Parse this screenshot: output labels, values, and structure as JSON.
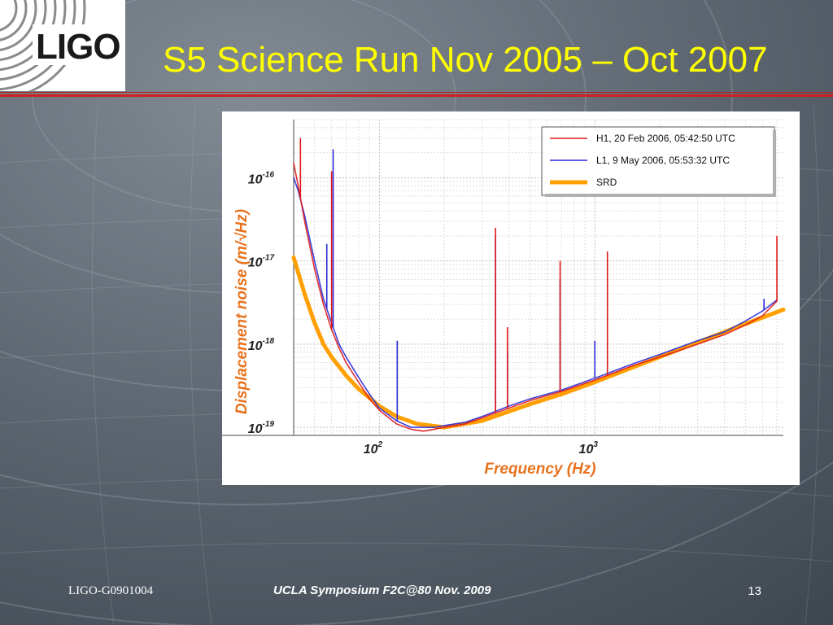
{
  "slide": {
    "logo_text": "LIGO",
    "title": "S5 Science Run Nov 2005 – Oct 2007",
    "footer_left": "LIGO-G0901004",
    "footer_center": "UCLA Symposium F2C@80 Nov. 2009",
    "page_number": "13"
  },
  "colors": {
    "title": "#ffff00",
    "accent_rule": "#d01f1f",
    "h1_trace": "#e01818",
    "l1_trace": "#2a2ad8",
    "srd": "#ffa000",
    "axis_label": "#e8731f"
  },
  "chart_data": {
    "type": "line",
    "x_scale": "log",
    "y_scale": "log",
    "xlabel": "Frequency (Hz)",
    "ylabel": "Displacement noise (m/√Hz)",
    "xlim": [
      40,
      7500
    ],
    "ylim": [
      8e-20,
      5e-16
    ],
    "x_ticks": [
      {
        "value": 100,
        "label": "10",
        "exp": "2"
      },
      {
        "value": 1000,
        "label": "10",
        "exp": "3"
      }
    ],
    "y_ticks": [
      {
        "value": 1e-16,
        "label": "10",
        "exp": "-16"
      },
      {
        "value": 1e-17,
        "label": "10",
        "exp": "-17"
      },
      {
        "value": 1e-18,
        "label": "10",
        "exp": "-18"
      },
      {
        "value": 1e-19,
        "label": "10",
        "exp": "-19"
      }
    ],
    "grid": true,
    "legend_position": "top-right",
    "series": [
      {
        "name": "H1, 20 Feb 2006, 05:42:50 UTC",
        "color": "#e01818",
        "x": [
          40,
          42,
          45,
          50,
          55,
          60,
          65,
          70,
          80,
          90,
          100,
          120,
          140,
          160,
          180,
          200,
          250,
          300,
          400,
          500,
          700,
          1000,
          1500,
          2000,
          3000,
          4000,
          5000,
          6000,
          7000
        ],
        "y": [
          1.5e-16,
          8e-17,
          3e-17,
          8e-18,
          3e-18,
          1.5e-18,
          9e-19,
          6e-19,
          3.5e-19,
          2.2e-19,
          1.6e-19,
          1.1e-19,
          9.5e-20,
          9e-20,
          9.5e-20,
          1e-19,
          1.1e-19,
          1.3e-19,
          1.7e-19,
          2.1e-19,
          2.7e-19,
          3.7e-19,
          5.5e-19,
          7e-19,
          1e-18,
          1.3e-18,
          1.7e-18,
          2.2e-18,
          3.3e-18
        ],
        "spikes": [
          {
            "x": 43,
            "y": 3e-16
          },
          {
            "x": 60,
            "y": 1.2e-16
          },
          {
            "x": 346,
            "y": 2.5e-17
          },
          {
            "x": 393,
            "y": 1.6e-18
          },
          {
            "x": 690,
            "y": 1e-17
          },
          {
            "x": 1144,
            "y": 1.3e-17
          },
          {
            "x": 7000,
            "y": 2e-17
          }
        ]
      },
      {
        "name": "L1, 9 May 2006, 05:53:32 UTC",
        "color": "#2a2ad8",
        "x": [
          40,
          42,
          45,
          50,
          55,
          60,
          65,
          70,
          80,
          90,
          100,
          120,
          140,
          160,
          180,
          200,
          250,
          300,
          400,
          500,
          700,
          1000,
          1500,
          2000,
          3000,
          4000,
          5000,
          6000,
          7000
        ],
        "y": [
          1e-16,
          7e-17,
          3.5e-17,
          1e-17,
          3.5e-18,
          1.8e-18,
          1e-18,
          7e-19,
          4e-19,
          2.5e-19,
          1.7e-19,
          1.2e-19,
          1e-19,
          1e-19,
          1e-19,
          1.05e-19,
          1.15e-19,
          1.35e-19,
          1.8e-19,
          2.2e-19,
          2.8e-19,
          3.9e-19,
          5.8e-19,
          7.5e-19,
          1.1e-18,
          1.4e-18,
          1.9e-18,
          2.5e-18,
          3.4e-18
        ],
        "spikes": [
          {
            "x": 57,
            "y": 1.6e-17
          },
          {
            "x": 61,
            "y": 2.2e-16
          },
          {
            "x": 121,
            "y": 1.1e-18
          },
          {
            "x": 346,
            "y": 2e-17
          },
          {
            "x": 393,
            "y": 8e-19
          },
          {
            "x": 690,
            "y": 6e-18
          },
          {
            "x": 1000,
            "y": 1.1e-18
          },
          {
            "x": 6100,
            "y": 3.5e-18
          }
        ]
      },
      {
        "name": "SRD",
        "color": "#ffa000",
        "x": [
          40,
          45,
          50,
          55,
          60,
          70,
          80,
          100,
          120,
          150,
          200,
          300,
          500,
          700,
          1000,
          2000,
          3000,
          5000,
          7500
        ],
        "y": [
          1.1e-17,
          4e-18,
          1.8e-18,
          1e-18,
          7e-19,
          4.2e-19,
          2.9e-19,
          1.8e-19,
          1.35e-19,
          1.1e-19,
          1e-19,
          1.2e-19,
          1.9e-19,
          2.5e-19,
          3.5e-19,
          7e-19,
          1.05e-18,
          1.75e-18,
          2.6e-18
        ]
      }
    ]
  }
}
